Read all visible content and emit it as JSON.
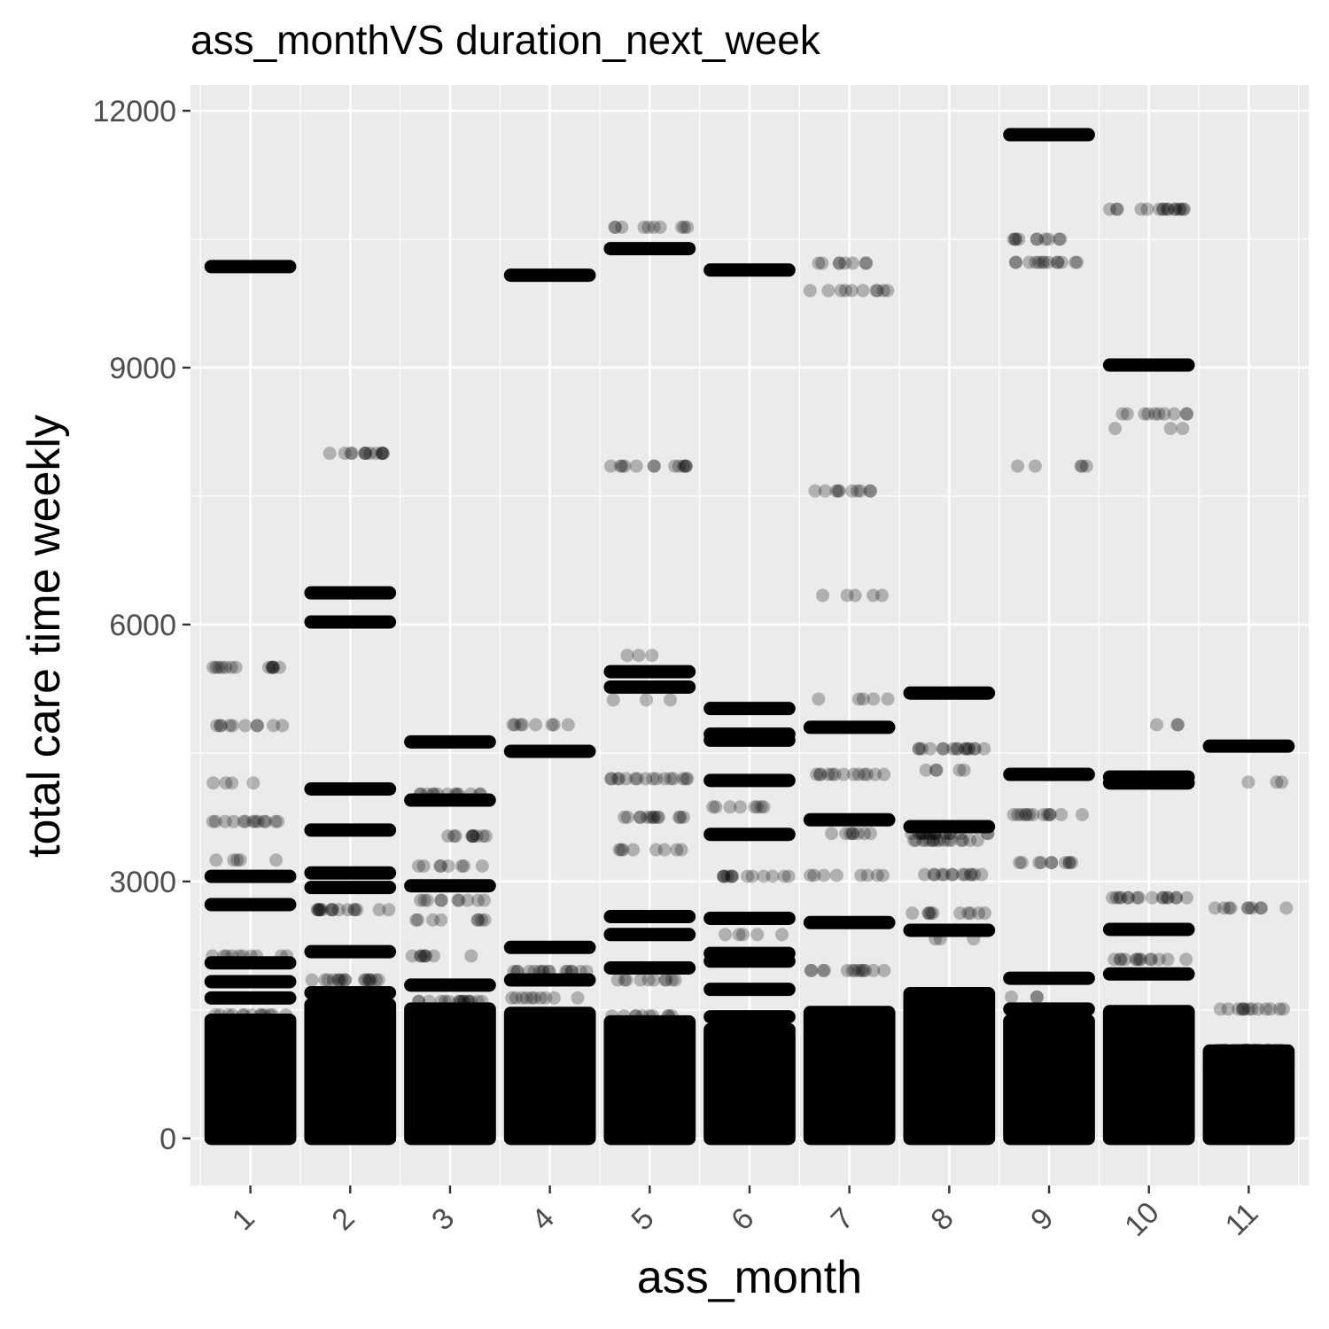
{
  "chart_data": {
    "type": "scatter",
    "title": "ass_monthVS duration_next_week",
    "xlabel": "ass_month",
    "ylabel": "total care time weekly",
    "categories": [
      "1",
      "2",
      "3",
      "4",
      "5",
      "6",
      "7",
      "8",
      "9",
      "10",
      "11"
    ],
    "yticks": [
      0,
      3000,
      6000,
      9000,
      12000
    ],
    "ylim": [
      -550,
      12300
    ],
    "grid": true,
    "point_color": "#000000",
    "point_alpha": 0.25,
    "panel_background": "#ebebeb",
    "dense_band_top": [
      1380,
      1560,
      1510,
      1460,
      1360,
      1270,
      1470,
      1690,
      1370,
      1480,
      1020
    ],
    "series": [
      {
        "month": "1",
        "bands": [
          [
            10180,
            1
          ],
          [
            5500,
            0.5
          ],
          [
            4820,
            0.4
          ],
          [
            4150,
            0.15
          ],
          [
            3700,
            0.5
          ],
          [
            3250,
            0.2
          ],
          [
            3060,
            1
          ],
          [
            2730,
            1
          ],
          [
            2130,
            0.4
          ],
          [
            2050,
            1
          ],
          [
            1830,
            1
          ],
          [
            1640,
            1
          ],
          [
            1440,
            0.5
          ]
        ]
      },
      {
        "month": "2",
        "bands": [
          [
            8000,
            0.5
          ],
          [
            6370,
            1
          ],
          [
            6030,
            1
          ],
          [
            4080,
            1
          ],
          [
            3600,
            0.8
          ],
          [
            3100,
            1
          ],
          [
            2930,
            0.8
          ],
          [
            2670,
            0.6
          ],
          [
            2180,
            1
          ],
          [
            1850,
            0.6
          ],
          [
            1700,
            0.8
          ]
        ]
      },
      {
        "month": "3",
        "bands": [
          [
            4630,
            1
          ],
          [
            4020,
            0.5
          ],
          [
            3950,
            1
          ],
          [
            3530,
            0.4
          ],
          [
            3180,
            0.3
          ],
          [
            2950,
            1
          ],
          [
            2780,
            0.4
          ],
          [
            2550,
            0.3
          ],
          [
            2130,
            0.3
          ],
          [
            1790,
            1
          ],
          [
            1600,
            0.6
          ]
        ]
      },
      {
        "month": "4",
        "bands": [
          [
            10080,
            1
          ],
          [
            4830,
            0.3
          ],
          [
            4520,
            1
          ],
          [
            2230,
            1
          ],
          [
            1950,
            0.6
          ],
          [
            1850,
            1
          ],
          [
            1640,
            0.4
          ]
        ]
      },
      {
        "month": "5",
        "bands": [
          [
            10640,
            0.4
          ],
          [
            10390,
            1
          ],
          [
            7850,
            0.5
          ],
          [
            5640,
            0.1
          ],
          [
            5450,
            1
          ],
          [
            5270,
            1
          ],
          [
            5120,
            0.1
          ],
          [
            4200,
            0.6
          ],
          [
            3750,
            0.5
          ],
          [
            3370,
            0.3
          ],
          [
            2590,
            0.8
          ],
          [
            2380,
            1
          ],
          [
            1990,
            1
          ],
          [
            1850,
            0.4
          ],
          [
            1430,
            0.4
          ]
        ]
      },
      {
        "month": "6",
        "bands": [
          [
            10140,
            1
          ],
          [
            5020,
            1
          ],
          [
            4720,
            1
          ],
          [
            4650,
            1
          ],
          [
            4180,
            1
          ],
          [
            3870,
            0.3
          ],
          [
            3550,
            1
          ],
          [
            3060,
            0.5
          ],
          [
            2570,
            1
          ],
          [
            2380,
            0.2
          ],
          [
            2160,
            1
          ],
          [
            2070,
            1
          ],
          [
            1740,
            1
          ],
          [
            1420,
            1
          ]
        ]
      },
      {
        "month": "7",
        "bands": [
          [
            10220,
            0.3
          ],
          [
            9900,
            0.4
          ],
          [
            7560,
            0.4
          ],
          [
            6340,
            0.2
          ],
          [
            5130,
            0.2
          ],
          [
            4800,
            1
          ],
          [
            4250,
            0.5
          ],
          [
            3720,
            1
          ],
          [
            3560,
            0.3
          ],
          [
            3070,
            0.3
          ],
          [
            2520,
            0.7
          ],
          [
            1960,
            0.5
          ]
        ]
      },
      {
        "month": "8",
        "bands": [
          [
            5200,
            0.8
          ],
          [
            4550,
            0.6
          ],
          [
            4300,
            0.2
          ],
          [
            3640,
            1
          ],
          [
            3560,
            0.6
          ],
          [
            3480,
            0.6
          ],
          [
            3080,
            0.5
          ],
          [
            2630,
            0.4
          ],
          [
            2430,
            1
          ],
          [
            2330,
            0.1
          ]
        ]
      },
      {
        "month": "9",
        "bands": [
          [
            11720,
            1
          ],
          [
            10500,
            0.4
          ],
          [
            10230,
            0.5
          ],
          [
            7850,
            0.2
          ],
          [
            4250,
            1
          ],
          [
            3780,
            0.5
          ],
          [
            3220,
            0.4
          ],
          [
            1870,
            1
          ],
          [
            1650,
            0.05
          ],
          [
            1510,
            1
          ]
        ]
      },
      {
        "month": "10",
        "bands": [
          [
            10850,
            0.6
          ],
          [
            9030,
            1
          ],
          [
            8460,
            0.4
          ],
          [
            8290,
            0.1
          ],
          [
            4830,
            0.1
          ],
          [
            4220,
            1
          ],
          [
            4150,
            1
          ],
          [
            2810,
            0.6
          ],
          [
            2440,
            1
          ],
          [
            2090,
            0.5
          ],
          [
            1920,
            1
          ]
        ]
      },
      {
        "month": "11",
        "bands": [
          [
            4580,
            0.8
          ],
          [
            4160,
            0.1
          ],
          [
            2690,
            0.4
          ],
          [
            1510,
            0.5
          ],
          [
            1030,
            0.6
          ],
          [
            850,
            1
          ],
          [
            670,
            0.4
          ]
        ]
      }
    ]
  }
}
